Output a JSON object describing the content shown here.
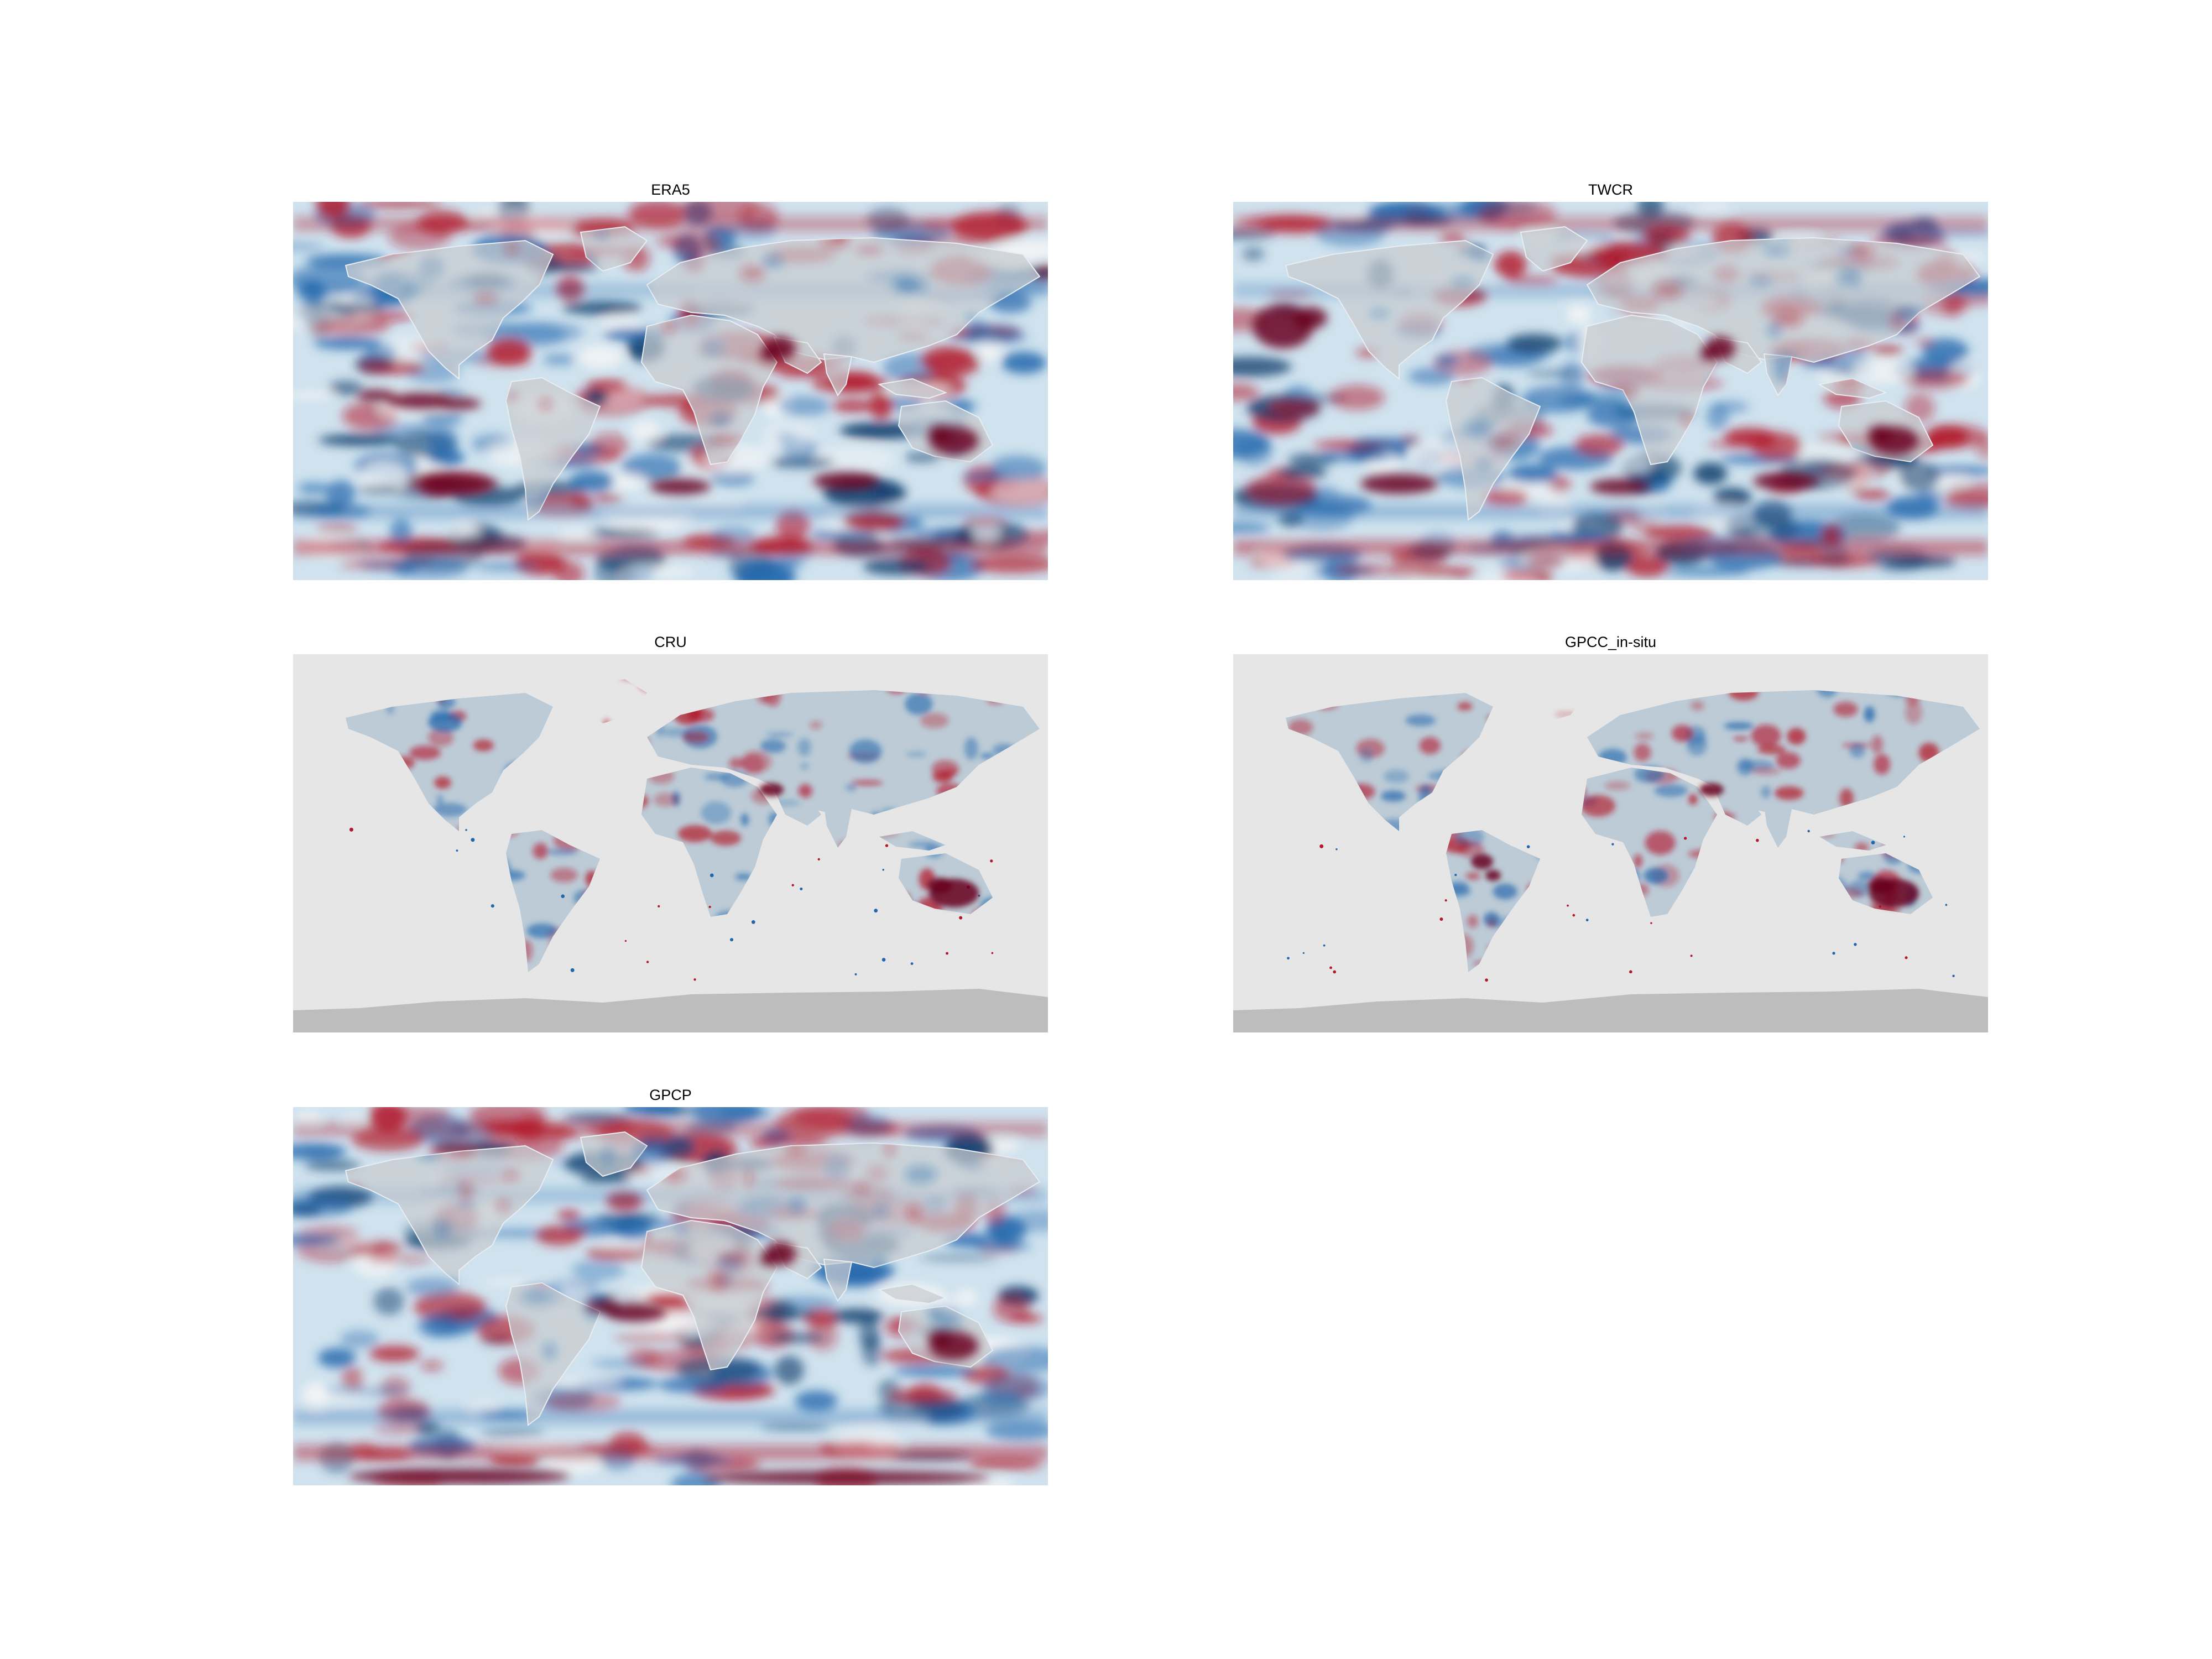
{
  "figure": {
    "panels": [
      {
        "id": "era5",
        "title": "ERA5",
        "coverage": "global",
        "land_overlay": true,
        "hotspots": [
          "equatorial-pacific",
          "sahel-east",
          "australia",
          "southern-ocean"
        ]
      },
      {
        "id": "twcr",
        "title": "TWCR",
        "coverage": "global",
        "land_overlay": true,
        "hotspots": [
          "north-pacific",
          "sahel-east",
          "australia",
          "southern-ocean"
        ]
      },
      {
        "id": "cru",
        "title": "CRU",
        "coverage": "land-only",
        "land_overlay": false,
        "hotspots": [
          "horn-africa",
          "australia"
        ]
      },
      {
        "id": "gpcc",
        "title": "GPCC_in-situ",
        "coverage": "land-only",
        "land_overlay": false,
        "hotspots": [
          "horn-africa",
          "australia",
          "amazon"
        ]
      },
      {
        "id": "gpcp",
        "title": "GPCP",
        "coverage": "global",
        "land_overlay": true,
        "hotspots": [
          "equatorial-atlantic",
          "sahel-east",
          "australia",
          "antarctic-edge"
        ]
      }
    ]
  },
  "colors": {
    "strong_positive": "#67001f",
    "positive": "#b2182b",
    "neutral": "#f7f7f7",
    "negative": "#2166ac",
    "strong_negative": "#053061",
    "land_grey": "#c8ccd0",
    "missing_data": "#e6e6e6",
    "antarctica_mask": "#bdbdbd"
  }
}
